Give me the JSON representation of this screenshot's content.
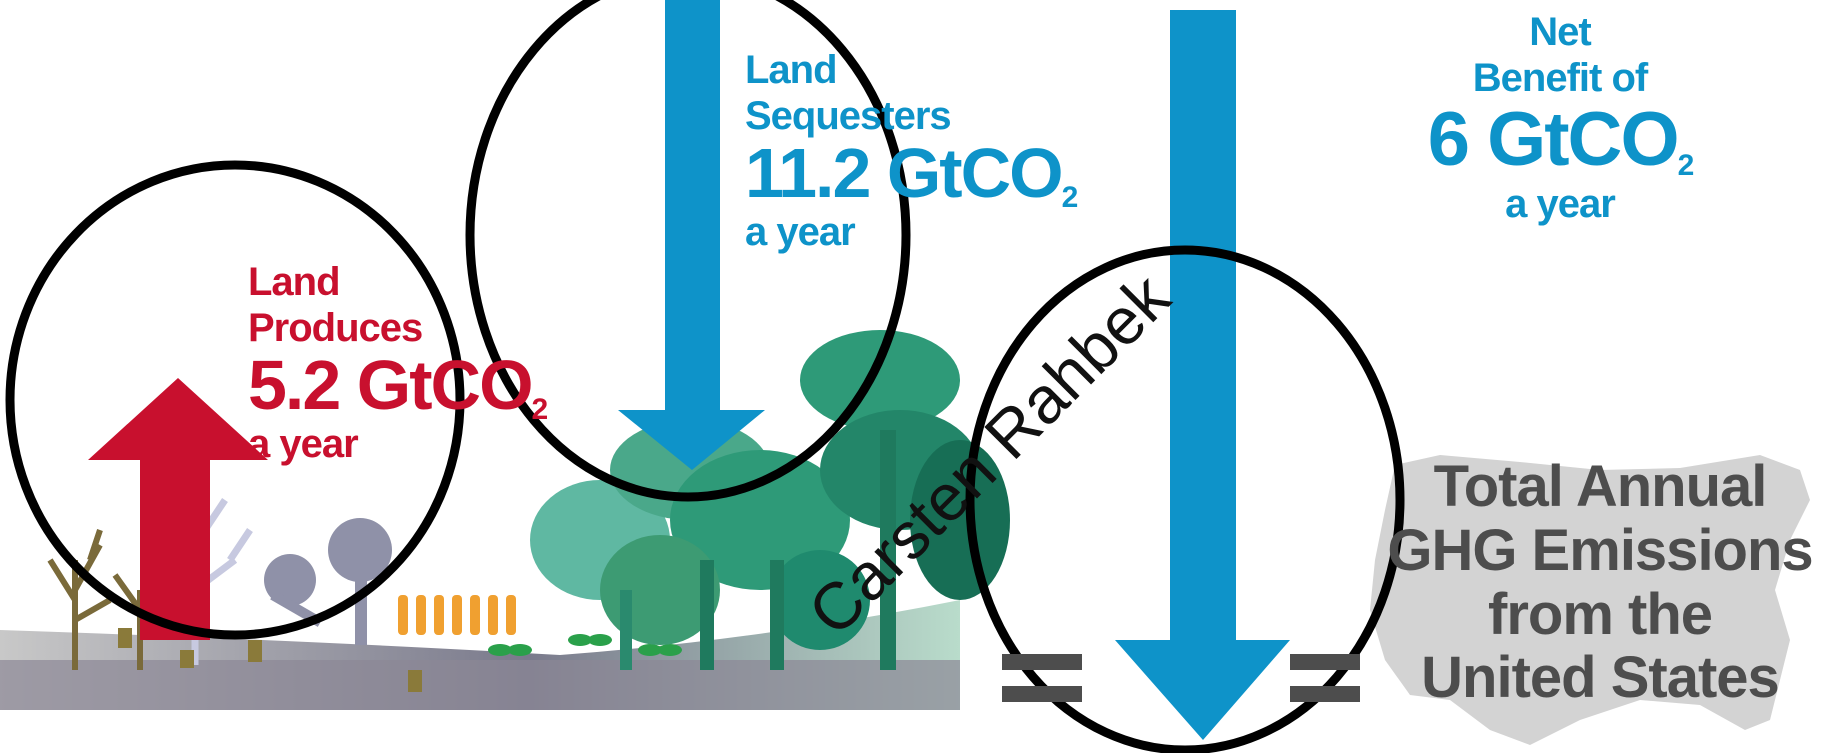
{
  "colors": {
    "red": "#c8102e",
    "blue": "#0e93c9",
    "gray_text": "#4d4d4d",
    "usa_silhouette": "#d3d3d3",
    "ground": "#7a7a8c",
    "forest_green": "#1f8a6e"
  },
  "produces": {
    "line1": "Land",
    "line2": "Produces",
    "value": "5.2 GtCO",
    "sub": "2",
    "line4": "a year"
  },
  "sequesters": {
    "line1": "Land",
    "line2": "Sequesters",
    "value": "11.2 GtCO",
    "sub": "2",
    "line4": "a year"
  },
  "net": {
    "line1": "Net",
    "line2": "Benefit of",
    "value": "6 GtCO",
    "sub": "2",
    "line4": "a year"
  },
  "total": {
    "line1": "Total Annual",
    "line2": "GHG Emissions",
    "line3": "from the",
    "line4": "United States"
  },
  "symbols": {
    "equals_left": "=",
    "equals_right": "="
  },
  "watermark": "Carsten Rahbek",
  "icons": [
    "up-arrow-icon",
    "down-arrow-icon",
    "usa-map-icon",
    "tree-icon",
    "wheat-icon"
  ]
}
